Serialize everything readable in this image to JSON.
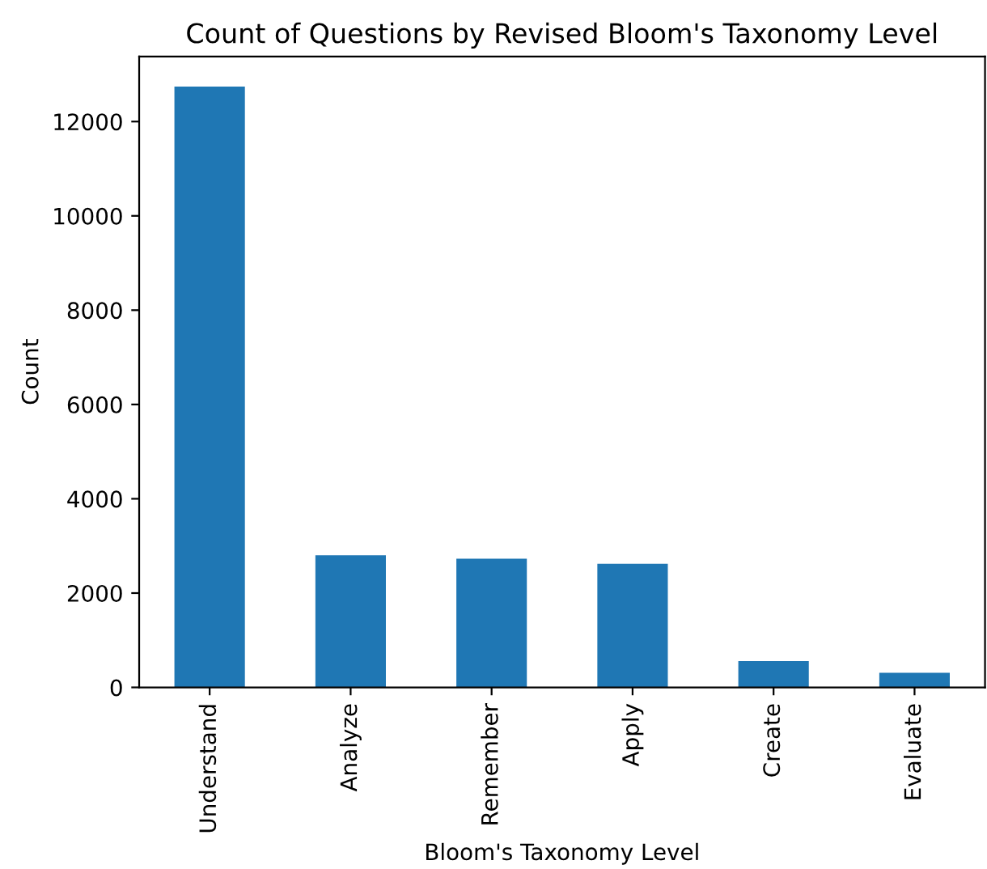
{
  "chart_data": {
    "type": "bar",
    "title": "Count of Questions by Revised Bloom's Taxonomy Level",
    "xlabel": "Bloom's Taxonomy Level",
    "ylabel": "Count",
    "categories": [
      "Understand",
      "Analyze",
      "Remember",
      "Apply",
      "Create",
      "Evaluate"
    ],
    "values": [
      12740,
      2800,
      2730,
      2620,
      560,
      310
    ],
    "color": "#1f77b4",
    "ylim": [
      0,
      13380
    ],
    "yticks": [
      0,
      2000,
      4000,
      6000,
      8000,
      10000,
      12000
    ],
    "grid": false
  }
}
